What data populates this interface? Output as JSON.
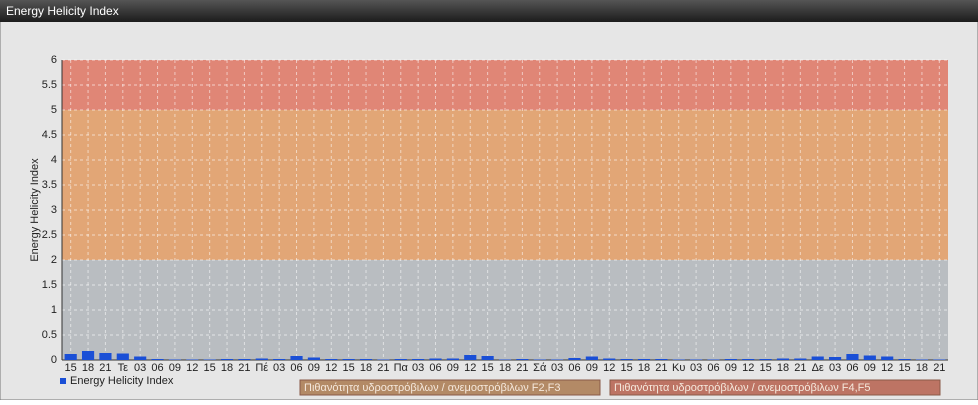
{
  "chart_data": {
    "type": "bar",
    "title": "Energy Helicity Index",
    "y_label": "Energy Helicity Index",
    "categories": [
      "15",
      "18",
      "21",
      "Τε",
      "03",
      "06",
      "09",
      "12",
      "15",
      "18",
      "21",
      "Πέ",
      "03",
      "06",
      "09",
      "12",
      "15",
      "18",
      "21",
      "Πα",
      "03",
      "06",
      "09",
      "12",
      "15",
      "18",
      "21",
      "Σά",
      "03",
      "06",
      "09",
      "12",
      "15",
      "18",
      "21",
      "Κυ",
      "03",
      "06",
      "09",
      "12",
      "15",
      "18",
      "21",
      "Δε",
      "03",
      "06",
      "09",
      "12",
      "15",
      "18",
      "21"
    ],
    "series": [
      {
        "name": "Energy Helicity Index",
        "color": "#1a4fd6",
        "values": [
          0.12,
          0.18,
          0.14,
          0.13,
          0.07,
          0.02,
          0.01,
          0.01,
          0.01,
          0.02,
          0.02,
          0.03,
          0.02,
          0.08,
          0.05,
          0.02,
          0.02,
          0.02,
          0.01,
          0.02,
          0.02,
          0.03,
          0.03,
          0.1,
          0.08,
          0.01,
          0.02,
          0.01,
          0.01,
          0.04,
          0.07,
          0.03,
          0.02,
          0.02,
          0.02,
          0.01,
          0.01,
          0.01,
          0.02,
          0.02,
          0.02,
          0.03,
          0.03,
          0.07,
          0.06,
          0.12,
          0.09,
          0.07,
          0.02,
          0.01,
          0.01
        ]
      }
    ],
    "bands": [
      {
        "from": 0,
        "to": 2,
        "color": "#b9bdc1"
      },
      {
        "from": 2,
        "to": 5,
        "color": "#e2a676",
        "name": "Πιθανότητα υδροστρόβιλων / ανεμοστρόβιλων F2,F3",
        "legend_color": "#b38a66"
      },
      {
        "from": 5,
        "to": 6,
        "color": "#e08676",
        "name": "Πιθανότητα υδροστρόβιλων / ανεμοστρόβιλων F4,F5",
        "legend_color": "#bd7464"
      }
    ],
    "ylim": [
      0,
      6
    ],
    "yticks": [
      0,
      0.5,
      1,
      1.5,
      2,
      2.5,
      3,
      3.5,
      4,
      4.5,
      5,
      5.5,
      6
    ],
    "grid": true
  }
}
